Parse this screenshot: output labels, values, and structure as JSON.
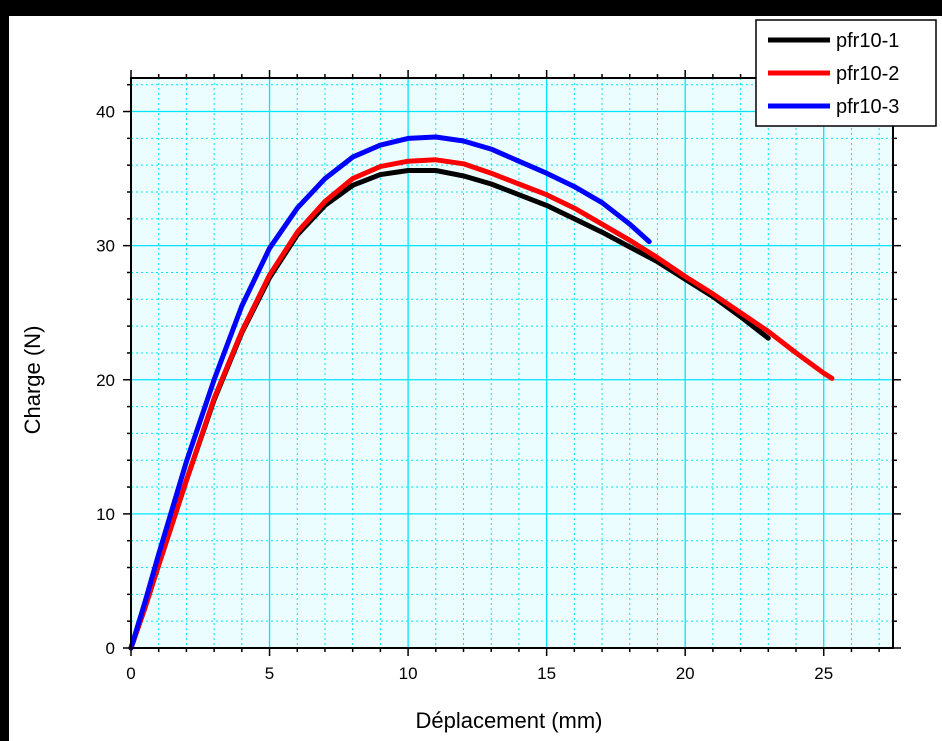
{
  "chart_data": {
    "type": "line",
    "title": "",
    "xlabel": "Déplacement (mm)",
    "ylabel": "Charge (N)",
    "xlim": [
      0,
      27.5
    ],
    "ylim": [
      0,
      42.5
    ],
    "x_ticks": [
      "0",
      "5",
      "10",
      "15",
      "20",
      "25"
    ],
    "y_ticks": [
      "0",
      "10",
      "20",
      "30",
      "40"
    ],
    "grid": true,
    "grid_color": "#00e5ff",
    "plot_background": "#ecfdff",
    "legend_position": "top-right",
    "series": [
      {
        "name": "pfr10-1",
        "color": "#000000",
        "points": [
          [
            0,
            0
          ],
          [
            0.5,
            3
          ],
          [
            1,
            6.2
          ],
          [
            2,
            12.5
          ],
          [
            3,
            18.5
          ],
          [
            4,
            23.5
          ],
          [
            5,
            27.6
          ],
          [
            6,
            30.8
          ],
          [
            7,
            33
          ],
          [
            8,
            34.5
          ],
          [
            9,
            35.3
          ],
          [
            10,
            35.6
          ],
          [
            11,
            35.6
          ],
          [
            12,
            35.2
          ],
          [
            13,
            34.6
          ],
          [
            14,
            33.8
          ],
          [
            15,
            33
          ],
          [
            16,
            32
          ],
          [
            17,
            31
          ],
          [
            18,
            29.9
          ],
          [
            19,
            28.8
          ],
          [
            20,
            27.5
          ],
          [
            21,
            26.2
          ],
          [
            22,
            24.7
          ],
          [
            23,
            23.1
          ]
        ]
      },
      {
        "name": "pfr10-2",
        "color": "#ff0000",
        "points": [
          [
            0,
            0
          ],
          [
            0.5,
            3
          ],
          [
            1,
            6.2
          ],
          [
            2,
            12.5
          ],
          [
            3,
            18.6
          ],
          [
            4,
            23.6
          ],
          [
            5,
            27.8
          ],
          [
            6,
            31
          ],
          [
            7,
            33.3
          ],
          [
            8,
            35
          ],
          [
            9,
            35.9
          ],
          [
            10,
            36.3
          ],
          [
            11,
            36.4
          ],
          [
            12,
            36.1
          ],
          [
            13,
            35.4
          ],
          [
            14,
            34.6
          ],
          [
            15,
            33.8
          ],
          [
            16,
            32.8
          ],
          [
            17,
            31.6
          ],
          [
            18,
            30.4
          ],
          [
            19,
            29.1
          ],
          [
            20,
            27.7
          ],
          [
            21,
            26.4
          ],
          [
            22,
            25
          ],
          [
            23,
            23.6
          ],
          [
            24,
            22
          ],
          [
            25,
            20.5
          ],
          [
            25.3,
            20.1
          ]
        ]
      },
      {
        "name": "pfr10-3",
        "color": "#0000ff",
        "points": [
          [
            0,
            0
          ],
          [
            0.5,
            3.4
          ],
          [
            1,
            7
          ],
          [
            2,
            13.9
          ],
          [
            3,
            20
          ],
          [
            4,
            25.5
          ],
          [
            5,
            29.8
          ],
          [
            6,
            32.8
          ],
          [
            7,
            35
          ],
          [
            8,
            36.6
          ],
          [
            9,
            37.5
          ],
          [
            10,
            38
          ],
          [
            11,
            38.1
          ],
          [
            12,
            37.8
          ],
          [
            13,
            37.2
          ],
          [
            14,
            36.3
          ],
          [
            15,
            35.4
          ],
          [
            16,
            34.4
          ],
          [
            17,
            33.2
          ],
          [
            18,
            31.6
          ],
          [
            18.7,
            30.3
          ]
        ]
      }
    ]
  }
}
